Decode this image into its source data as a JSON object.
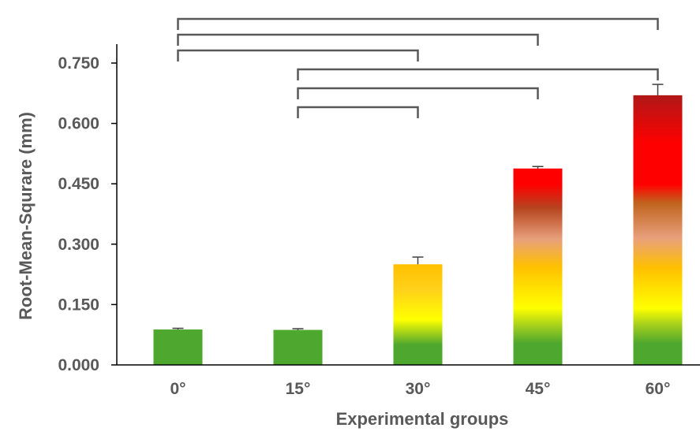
{
  "chart_data": {
    "type": "bar",
    "xlabel": "Experimental groups",
    "ylabel": "Root-Mean-Squrare (mm)",
    "categories": [
      "0°",
      "15°",
      "30°",
      "45°",
      "60°"
    ],
    "values": [
      0.088,
      0.087,
      0.25,
      0.488,
      0.67
    ],
    "error": [
      0.003,
      0.003,
      0.018,
      0.005,
      0.027
    ],
    "ylim": [
      0,
      0.8
    ],
    "yticks": [
      "0.000",
      "0.150",
      "0.300",
      "0.450",
      "0.600",
      "0.750"
    ],
    "ytick_values": [
      0,
      0.15,
      0.3,
      0.45,
      0.6,
      0.75
    ],
    "grid": false,
    "significance_brackets": [
      {
        "from": "0°",
        "to": "60°"
      },
      {
        "from": "0°",
        "to": "45°"
      },
      {
        "from": "0°",
        "to": "30°"
      },
      {
        "from": "15°",
        "to": "60°"
      },
      {
        "from": "15°",
        "to": "45°"
      },
      {
        "from": "15°",
        "to": "30°"
      }
    ],
    "colors": {
      "green": "#4ea72e",
      "yellow": "#ffff00",
      "gold": "#ffc000",
      "salmon": "#e8a07c",
      "brown": "#c0502a",
      "red": "#ff0000",
      "darkred": "#b01818",
      "axis": "#000000",
      "text": "#595959",
      "bracket": "#595959"
    }
  }
}
